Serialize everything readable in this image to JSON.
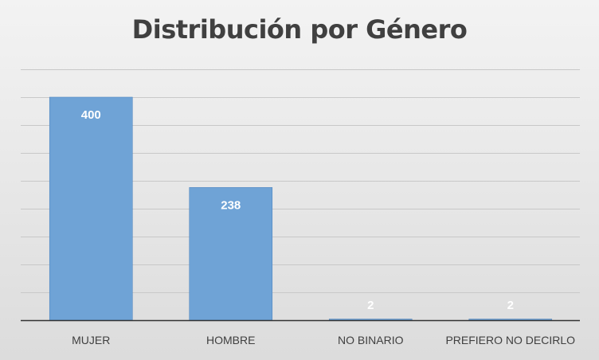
{
  "chart_data": {
    "type": "bar",
    "title": "Distribución por Género",
    "categories": [
      "MUJER",
      "HOMBRE",
      "NO BINARIO",
      "PREFIERO NO DECIRLO"
    ],
    "values": [
      400,
      238,
      2,
      2
    ],
    "xlabel": "",
    "ylabel": "",
    "ylim": [
      0,
      400
    ],
    "grid": true,
    "data_labels": true,
    "bar_color": "#6fa3d6",
    "bar_edge_color": "#4f86c0",
    "grid_color": "#c8c8c8",
    "axis_color": "#333333",
    "label_color": "#ffffff",
    "small_label_color": "#ffffff",
    "tick_label_color": "#404040"
  }
}
